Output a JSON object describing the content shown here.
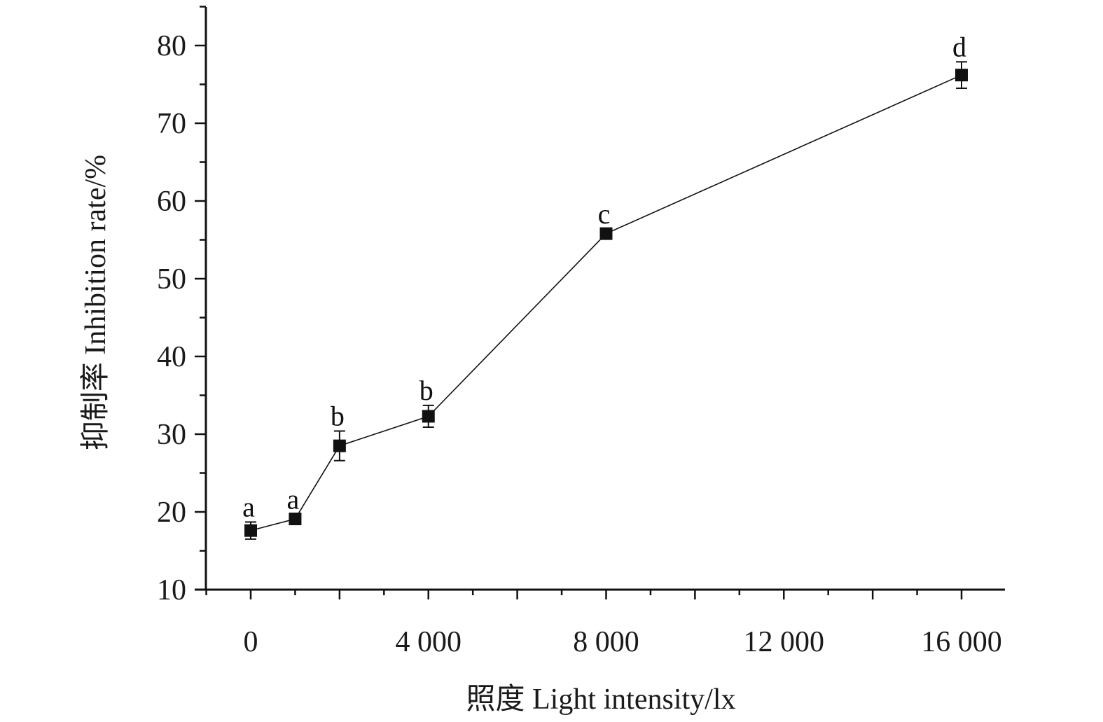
{
  "chart_data": {
    "type": "line",
    "xlabel": "照度 Light intensity/lx",
    "ylabel": "抑制率 Inhibition rate/%",
    "xlim": [
      -1000,
      16500
    ],
    "ylim": [
      10,
      85
    ],
    "x_ticks": [
      0,
      4000,
      8000,
      12000,
      16000
    ],
    "x_tick_labels": [
      "0",
      "4 000",
      "8 000",
      "12 000",
      "16 000"
    ],
    "x_minor_step": 1000,
    "y_ticks": [
      10,
      20,
      30,
      40,
      50,
      60,
      70,
      80
    ],
    "y_tick_labels": [
      "10",
      "20",
      "30",
      "40",
      "50",
      "60",
      "70",
      "80"
    ],
    "y_minor_step": 5,
    "grid": false,
    "series": [
      {
        "x": [
          0,
          1000,
          2000,
          4000,
          8000,
          16000
        ],
        "y": [
          17.6,
          19.1,
          28.5,
          32.3,
          55.8,
          76.2
        ],
        "error": [
          1.1,
          0.6,
          1.9,
          1.4,
          0.6,
          1.7
        ],
        "labels": [
          "a",
          "a",
          "b",
          "b",
          "c",
          "d"
        ],
        "marker": "square",
        "color": "#111111"
      }
    ]
  }
}
